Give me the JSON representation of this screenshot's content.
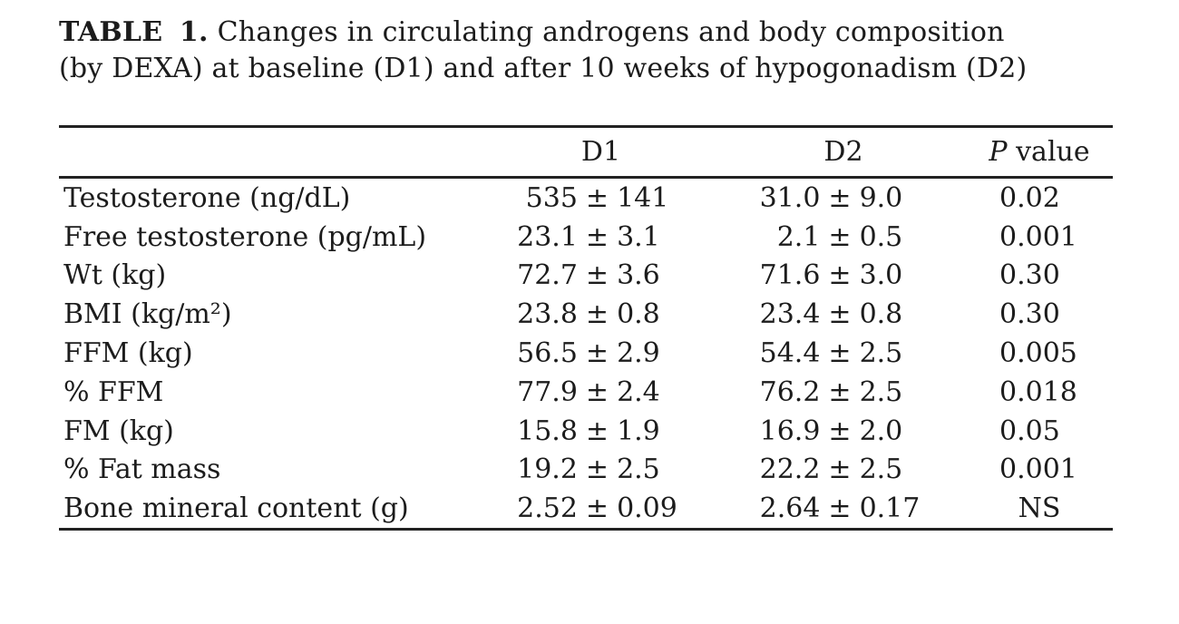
{
  "caption": {
    "label": "TABLE 1.",
    "text": "Changes in circulating androgens and body composition (by DEXA) at baseline (D1) and after 10 weeks of hypogonadism (D2)"
  },
  "table": {
    "pm_sign": "±",
    "header": {
      "label": "",
      "d1": "D1",
      "d2": "D2",
      "p_symbol": "P",
      "p_word": "value"
    },
    "rows": [
      {
        "label": "Testosterone (ng/dL)",
        "d1_mean": "535",
        "d1_sd": "141",
        "d2_mean": "31.0",
        "d2_sd": "9.0",
        "p": "0.02"
      },
      {
        "label": "Free testosterone (pg/mL)",
        "d1_mean": "23.1",
        "d1_sd": "3.1",
        "d2_mean": "2.1",
        "d2_sd": "0.5",
        "p": "0.001"
      },
      {
        "label": "Wt (kg)",
        "d1_mean": "72.7",
        "d1_sd": "3.6",
        "d2_mean": "71.6",
        "d2_sd": "3.0",
        "p": "0.30"
      },
      {
        "label": "BMI (kg/m²)",
        "d1_mean": "23.8",
        "d1_sd": "0.8",
        "d2_mean": "23.4",
        "d2_sd": "0.8",
        "p": "0.30"
      },
      {
        "label": "FFM (kg)",
        "d1_mean": "56.5",
        "d1_sd": "2.9",
        "d2_mean": "54.4",
        "d2_sd": "2.5",
        "p": "0.005"
      },
      {
        "label": "% FFM",
        "d1_mean": "77.9",
        "d1_sd": "2.4",
        "d2_mean": "76.2",
        "d2_sd": "2.5",
        "p": "0.018"
      },
      {
        "label": "FM (kg)",
        "d1_mean": "15.8",
        "d1_sd": "1.9",
        "d2_mean": "16.9",
        "d2_sd": "2.0",
        "p": "0.05"
      },
      {
        "label": "% Fat mass",
        "d1_mean": "19.2",
        "d1_sd": "2.5",
        "d2_mean": "22.2",
        "d2_sd": "2.5",
        "p": "0.001"
      },
      {
        "label": "Bone mineral content (g)",
        "d1_mean": "2.52",
        "d1_sd": "0.09",
        "d2_mean": "2.64",
        "d2_sd": "0.17",
        "p": "NS"
      }
    ]
  }
}
